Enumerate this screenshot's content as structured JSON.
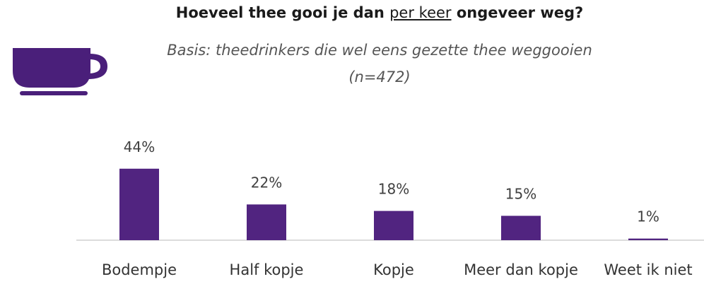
{
  "chart_data": {
    "type": "bar",
    "title": [
      "Hoeveel thee gooi je dan ",
      "per keer",
      " ongeveer weg?"
    ],
    "subtitle": "Basis: theedrinkers die wel eens gezette thee weggooien (n=472)",
    "categories": [
      "Bodempje",
      "Half kopje",
      "Kopje",
      "Meer dan kopje",
      "Weet ik niet"
    ],
    "values": [
      44,
      22,
      18,
      15,
      1
    ],
    "value_labels": [
      "44%",
      "22%",
      "18%",
      "15%",
      "1%"
    ],
    "color": "#512480"
  }
}
